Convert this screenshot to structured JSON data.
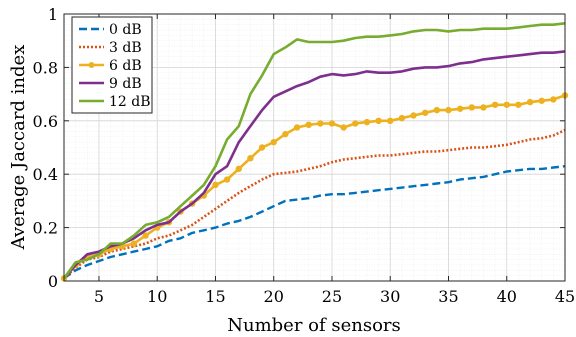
{
  "chart_data": {
    "type": "line",
    "xlabel": "Number of sensors",
    "ylabel": "Average Jaccard index",
    "xlim": [
      2,
      45
    ],
    "ylim": [
      0,
      1
    ],
    "xticks": [
      5,
      10,
      15,
      20,
      25,
      30,
      35,
      40,
      45
    ],
    "yticks": [
      0,
      0.2,
      0.4,
      0.6,
      0.8,
      1
    ],
    "ytick_labels": [
      "0",
      "0.2",
      "0.4",
      "0.6",
      "0.8",
      "1"
    ],
    "grid": true,
    "legend_position": "top-left",
    "x": [
      2,
      3,
      4,
      5,
      6,
      7,
      8,
      9,
      10,
      11,
      12,
      13,
      14,
      15,
      16,
      17,
      18,
      19,
      20,
      21,
      22,
      23,
      24,
      25,
      26,
      27,
      28,
      29,
      30,
      31,
      32,
      33,
      34,
      35,
      36,
      37,
      38,
      39,
      40,
      41,
      42,
      43,
      44,
      45
    ],
    "series": [
      {
        "name": "0 dB",
        "color": "#0072BD",
        "style": "dashed",
        "marker": "none",
        "values": [
          0.01,
          0.04,
          0.06,
          0.075,
          0.09,
          0.1,
          0.11,
          0.12,
          0.13,
          0.15,
          0.16,
          0.18,
          0.19,
          0.2,
          0.215,
          0.225,
          0.24,
          0.26,
          0.28,
          0.3,
          0.305,
          0.31,
          0.32,
          0.325,
          0.325,
          0.33,
          0.335,
          0.34,
          0.345,
          0.35,
          0.355,
          0.36,
          0.365,
          0.37,
          0.38,
          0.385,
          0.39,
          0.4,
          0.41,
          0.415,
          0.42,
          0.42,
          0.425,
          0.43
        ]
      },
      {
        "name": "3 dB",
        "color": "#D95319",
        "style": "dotted",
        "marker": "none",
        "values": [
          0.01,
          0.05,
          0.08,
          0.09,
          0.11,
          0.12,
          0.13,
          0.14,
          0.16,
          0.17,
          0.19,
          0.21,
          0.24,
          0.27,
          0.3,
          0.33,
          0.355,
          0.38,
          0.4,
          0.405,
          0.41,
          0.42,
          0.43,
          0.445,
          0.455,
          0.46,
          0.465,
          0.47,
          0.47,
          0.475,
          0.48,
          0.485,
          0.485,
          0.49,
          0.495,
          0.5,
          0.5,
          0.505,
          0.51,
          0.52,
          0.53,
          0.535,
          0.545,
          0.565
        ]
      },
      {
        "name": "6 dB",
        "color": "#EDB120",
        "style": "solid",
        "marker": "circle",
        "values": [
          0.01,
          0.06,
          0.09,
          0.1,
          0.12,
          0.13,
          0.14,
          0.17,
          0.2,
          0.22,
          0.26,
          0.29,
          0.32,
          0.36,
          0.38,
          0.42,
          0.46,
          0.5,
          0.52,
          0.55,
          0.575,
          0.585,
          0.59,
          0.59,
          0.575,
          0.59,
          0.595,
          0.6,
          0.6,
          0.61,
          0.62,
          0.63,
          0.64,
          0.64,
          0.645,
          0.65,
          0.65,
          0.66,
          0.66,
          0.66,
          0.67,
          0.675,
          0.68,
          0.695
        ]
      },
      {
        "name": "9 dB",
        "color": "#7E2F8E",
        "style": "solid",
        "marker": "none",
        "values": [
          0.01,
          0.06,
          0.1,
          0.11,
          0.13,
          0.14,
          0.16,
          0.19,
          0.21,
          0.22,
          0.26,
          0.29,
          0.33,
          0.4,
          0.43,
          0.52,
          0.58,
          0.64,
          0.69,
          0.71,
          0.73,
          0.745,
          0.765,
          0.775,
          0.77,
          0.775,
          0.785,
          0.78,
          0.78,
          0.785,
          0.795,
          0.8,
          0.8,
          0.805,
          0.815,
          0.82,
          0.83,
          0.835,
          0.84,
          0.845,
          0.85,
          0.855,
          0.855,
          0.86
        ]
      },
      {
        "name": "12 dB",
        "color": "#77AC30",
        "style": "solid",
        "marker": "none",
        "values": [
          0.01,
          0.07,
          0.08,
          0.1,
          0.14,
          0.14,
          0.17,
          0.21,
          0.22,
          0.24,
          0.28,
          0.32,
          0.36,
          0.43,
          0.53,
          0.58,
          0.7,
          0.77,
          0.85,
          0.875,
          0.905,
          0.895,
          0.895,
          0.895,
          0.9,
          0.91,
          0.915,
          0.915,
          0.92,
          0.925,
          0.935,
          0.94,
          0.94,
          0.935,
          0.94,
          0.94,
          0.945,
          0.945,
          0.945,
          0.95,
          0.955,
          0.96,
          0.96,
          0.965
        ]
      }
    ]
  }
}
